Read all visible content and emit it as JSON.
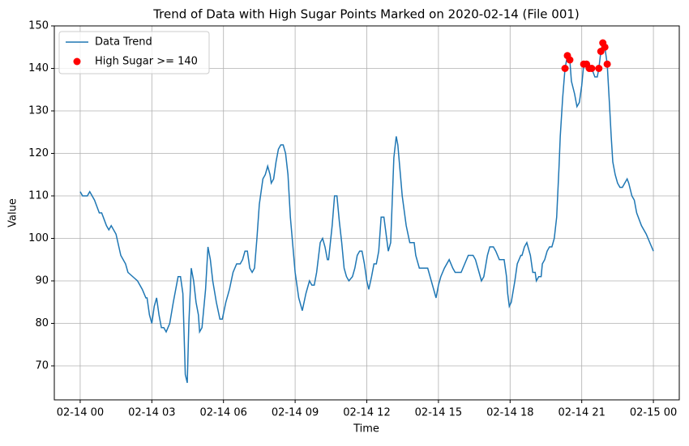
{
  "chart_data": {
    "type": "line",
    "title": "Trend of Data with High Sugar Points Marked on 2020-02-14 (File 001)",
    "x_label": "Time",
    "y_label": "Value",
    "grid": true,
    "legend": "upper left",
    "xlim": [
      "02-13 22:55",
      "02-15 01:05"
    ],
    "xticks": [
      {
        "value": "02-14 00:00",
        "label": "02-14 00"
      },
      {
        "value": "02-14 03:00",
        "label": "02-14 03"
      },
      {
        "value": "02-14 06:00",
        "label": "02-14 06"
      },
      {
        "value": "02-14 09:00",
        "label": "02-14 09"
      },
      {
        "value": "02-14 12:00",
        "label": "02-14 12"
      },
      {
        "value": "02-14 15:00",
        "label": "02-14 15"
      },
      {
        "value": "02-14 18:00",
        "label": "02-14 18"
      },
      {
        "value": "02-14 21:00",
        "label": "02-14 21"
      },
      {
        "value": "02-15 00:00",
        "label": "02-15 00"
      }
    ],
    "ylim": [
      62,
      150
    ],
    "yticks": [
      70,
      80,
      90,
      100,
      110,
      120,
      130,
      140,
      150
    ],
    "series": [
      {
        "name": "Data Trend",
        "color": "#1f77b4",
        "type": "line",
        "x": [
          "02-14 00:00",
          "02-14 00:06",
          "02-14 00:18",
          "02-14 00:24",
          "02-14 00:36",
          "02-14 00:48",
          "02-14 00:54",
          "02-14 01:06",
          "02-14 01:12",
          "02-14 01:18",
          "02-14 01:30",
          "02-14 01:42",
          "02-14 01:54",
          "02-14 02:00",
          "02-14 02:12",
          "02-14 02:24",
          "02-14 02:36",
          "02-14 02:45",
          "02-14 02:48",
          "02-14 02:54",
          "02-14 03:00",
          "02-14 03:06",
          "02-14 03:12",
          "02-14 03:18",
          "02-14 03:24",
          "02-14 03:30",
          "02-14 03:36",
          "02-14 03:45",
          "02-14 03:54",
          "02-14 04:00",
          "02-14 04:06",
          "02-14 04:12",
          "02-14 04:18",
          "02-14 04:24",
          "02-14 04:29",
          "02-14 04:33",
          "02-14 04:39",
          "02-14 04:45",
          "02-14 04:51",
          "02-14 04:57",
          "02-14 05:00",
          "02-14 05:06",
          "02-14 05:15",
          "02-14 05:21",
          "02-14 05:27",
          "02-14 05:33",
          "02-14 05:42",
          "02-14 05:51",
          "02-14 05:57",
          "02-14 06:06",
          "02-14 06:15",
          "02-14 06:24",
          "02-14 06:33",
          "02-14 06:42",
          "02-14 06:48",
          "02-14 06:54",
          "02-14 07:00",
          "02-14 07:06",
          "02-14 07:12",
          "02-14 07:18",
          "02-14 07:24",
          "02-14 07:30",
          "02-14 07:39",
          "02-14 07:45",
          "02-14 07:51",
          "02-14 07:57",
          "02-14 08:00",
          "02-14 08:06",
          "02-14 08:12",
          "02-14 08:18",
          "02-14 08:24",
          "02-14 08:30",
          "02-14 08:36",
          "02-14 08:42",
          "02-14 08:48",
          "02-14 09:00",
          "02-14 09:09",
          "02-14 09:15",
          "02-14 09:18",
          "02-14 09:27",
          "02-14 09:36",
          "02-14 09:42",
          "02-14 09:48",
          "02-14 09:54",
          "02-14 10:03",
          "02-14 10:09",
          "02-14 10:15",
          "02-14 10:21",
          "02-14 10:24",
          "02-14 10:33",
          "02-14 10:39",
          "02-14 10:45",
          "02-14 10:51",
          "02-14 10:57",
          "02-14 11:03",
          "02-14 11:09",
          "02-14 11:15",
          "02-14 11:24",
          "02-14 11:30",
          "02-14 11:36",
          "02-14 11:42",
          "02-14 11:48",
          "02-14 11:54",
          "02-14 12:00",
          "02-14 12:05",
          "02-14 12:12",
          "02-14 12:18",
          "02-14 12:24",
          "02-14 12:30",
          "02-14 12:36",
          "02-14 12:43",
          "02-14 12:54",
          "02-14 13:00",
          "02-14 13:08",
          "02-14 13:14",
          "02-14 13:18",
          "02-14 13:29",
          "02-14 13:39",
          "02-14 13:48",
          "02-14 13:59",
          "02-14 14:03",
          "02-14 14:12",
          "02-14 14:33",
          "02-14 14:48",
          "02-14 14:54",
          "02-14 15:00",
          "02-14 15:06",
          "02-14 15:15",
          "02-14 15:27",
          "02-14 15:36",
          "02-14 15:42",
          "02-14 15:57",
          "02-14 16:06",
          "02-14 16:15",
          "02-14 16:27",
          "02-14 16:33",
          "02-14 16:42",
          "02-14 16:48",
          "02-14 16:54",
          "02-14 17:03",
          "02-14 17:09",
          "02-14 17:18",
          "02-14 17:24",
          "02-14 17:33",
          "02-14 17:45",
          "02-14 17:51",
          "02-14 17:54",
          "02-14 17:58",
          "02-14 18:03",
          "02-14 18:12",
          "02-14 18:18",
          "02-14 18:27",
          "02-14 18:30",
          "02-14 18:36",
          "02-14 18:42",
          "02-14 18:51",
          "02-14 18:57",
          "02-14 19:03",
          "02-14 19:06",
          "02-14 19:12",
          "02-14 19:18",
          "02-14 19:21",
          "02-14 19:27",
          "02-14 19:33",
          "02-14 19:39",
          "02-14 19:45",
          "02-14 19:51",
          "02-14 19:57",
          "02-14 20:00",
          "02-14 20:03",
          "02-14 20:06",
          "02-14 20:12",
          "02-14 20:18",
          "02-14 20:24",
          "02-14 20:30",
          "02-14 20:34",
          "02-14 20:42",
          "02-14 20:48",
          "02-14 20:54",
          "02-14 21:00",
          "02-14 21:05",
          "02-14 21:12",
          "02-14 21:19",
          "02-14 21:25",
          "02-14 21:33",
          "02-14 21:39",
          "02-14 21:43",
          "02-14 21:48",
          "02-14 21:53",
          "02-14 21:58",
          "02-14 22:04",
          "02-14 22:10",
          "02-14 22:14",
          "02-14 22:18",
          "02-14 22:24",
          "02-14 22:30",
          "02-14 22:36",
          "02-14 22:42",
          "02-14 22:48",
          "02-14 22:54",
          "02-14 22:58",
          "02-14 23:06",
          "02-14 23:12",
          "02-14 23:18",
          "02-14 23:30",
          "02-14 23:42",
          "02-14 23:51",
          "02-15 00:00"
        ],
        "values": [
          111,
          110,
          110,
          111,
          109,
          106,
          106,
          103,
          102,
          103,
          101,
          96,
          94,
          92,
          91,
          90,
          88,
          86,
          86,
          82,
          80,
          84,
          86,
          82,
          79,
          79,
          78,
          80,
          85,
          88,
          91,
          91,
          87,
          68,
          66,
          80,
          93,
          90,
          85,
          82,
          78,
          79,
          88,
          98,
          95,
          90,
          85,
          81,
          81,
          85,
          88,
          92,
          94,
          94,
          95,
          97,
          97,
          93,
          92,
          93,
          100,
          108,
          114,
          115,
          117,
          115,
          113,
          114,
          118,
          121,
          122,
          122,
          120,
          115,
          105,
          92,
          86,
          84,
          83,
          87,
          90,
          89,
          89,
          92,
          99,
          100,
          98,
          95,
          95,
          103,
          110,
          110,
          104,
          99,
          93,
          91,
          90,
          91,
          93,
          96,
          97,
          97,
          94,
          90,
          88,
          91,
          94,
          94,
          97,
          105,
          105,
          97,
          99,
          119,
          124,
          122,
          110,
          103,
          99,
          99,
          96,
          93,
          93,
          88,
          86,
          89,
          91,
          93,
          95,
          93,
          92,
          92,
          94,
          96,
          96,
          95,
          92,
          90,
          91,
          96,
          98,
          98,
          97,
          95,
          95,
          91,
          87,
          84,
          85,
          90,
          94,
          96,
          96,
          98,
          99,
          96,
          92,
          92,
          90,
          91,
          91,
          94,
          95,
          97,
          98,
          98,
          100,
          105,
          111,
          117,
          124,
          133,
          140,
          143,
          142,
          137,
          134,
          131,
          132,
          136,
          141,
          141,
          140,
          140,
          138,
          138,
          140,
          144,
          146,
          145,
          141,
          131,
          124,
          118,
          115,
          113,
          112,
          112,
          113,
          114,
          113,
          110,
          109,
          106,
          103,
          101,
          99,
          97
        ]
      },
      {
        "name": "High Sugar >= 140",
        "color": "#ff0000",
        "type": "scatter",
        "x": [
          "02-14 20:18",
          "02-14 20:24",
          "02-14 20:30",
          "02-14 21:05",
          "02-14 21:12",
          "02-14 21:19",
          "02-14 21:25",
          "02-14 21:43",
          "02-14 21:48",
          "02-14 21:53",
          "02-14 21:58",
          "02-14 22:04"
        ],
        "values": [
          140,
          143,
          142,
          141,
          141,
          140,
          140,
          140,
          144,
          146,
          145,
          141
        ]
      }
    ]
  }
}
